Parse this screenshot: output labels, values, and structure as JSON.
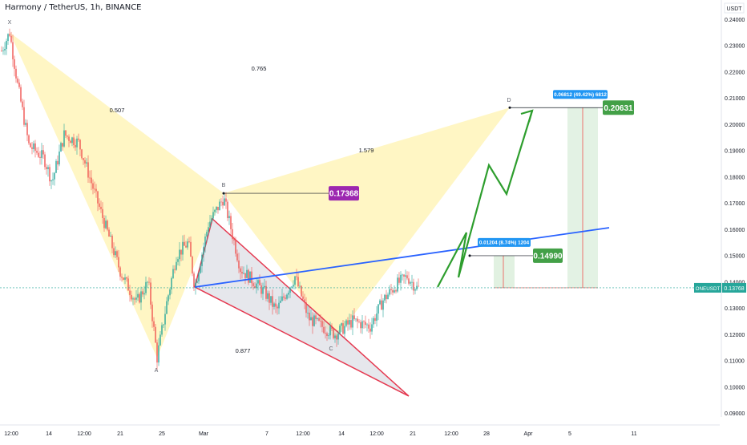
{
  "header": {
    "title": "Harmony / TetherUS, 1h, BINANCE"
  },
  "chart_data": {
    "type": "line",
    "title": "Harmony / TetherUS, 1h, BINANCE",
    "currency_label": "USDT",
    "ylim": [
      0.085,
      0.245
    ],
    "y_ticks": [
      "0.24000",
      "0.23000",
      "0.22000",
      "0.21000",
      "0.20000",
      "0.19000",
      "0.18000",
      "0.17000",
      "0.16000",
      "0.15000",
      "0.14000",
      "0.13000",
      "0.12000",
      "0.11000",
      "0.10000",
      "0.09000"
    ],
    "x_ticks": [
      "12:00",
      "14",
      "12:00",
      "21",
      "25",
      "Mar",
      "7",
      "12:00",
      "14",
      "12:00",
      "21",
      "12:00",
      "28",
      "Apr",
      "5",
      "11"
    ],
    "last_price": {
      "symbol": "ONEUSDT",
      "value": "0.13768",
      "price": 0.13768
    },
    "pattern_points": [
      {
        "label": "X",
        "price": 0.235
      },
      {
        "label": "A",
        "price": 0.111
      },
      {
        "label": "B",
        "price": 0.1737
      },
      {
        "label": "C",
        "price": 0.118
      },
      {
        "label": "D",
        "price": 0.2063
      }
    ],
    "ratios": [
      "0.765",
      "0.507",
      "1.579",
      "0.877"
    ],
    "levels": [
      {
        "price_label": "0.17368",
        "price": 0.17368,
        "color": "#9c27b0"
      },
      {
        "price_label": "0.14990",
        "price": 0.1499,
        "color": "#43a047",
        "info": "0.01204 (8.74%) 1204"
      },
      {
        "price_label": "0.20631",
        "price": 0.20631,
        "color": "#43a047",
        "info": "0.06812 (49.42%) 6812"
      }
    ],
    "trendline_color": "#2962ff",
    "wedge_color": "#e53950",
    "projection_color": "#2e9e2e",
    "harmonic_fill": "#fff3b0",
    "candle_colors": {
      "up": "#26a69a",
      "down": "#ef5350"
    }
  }
}
